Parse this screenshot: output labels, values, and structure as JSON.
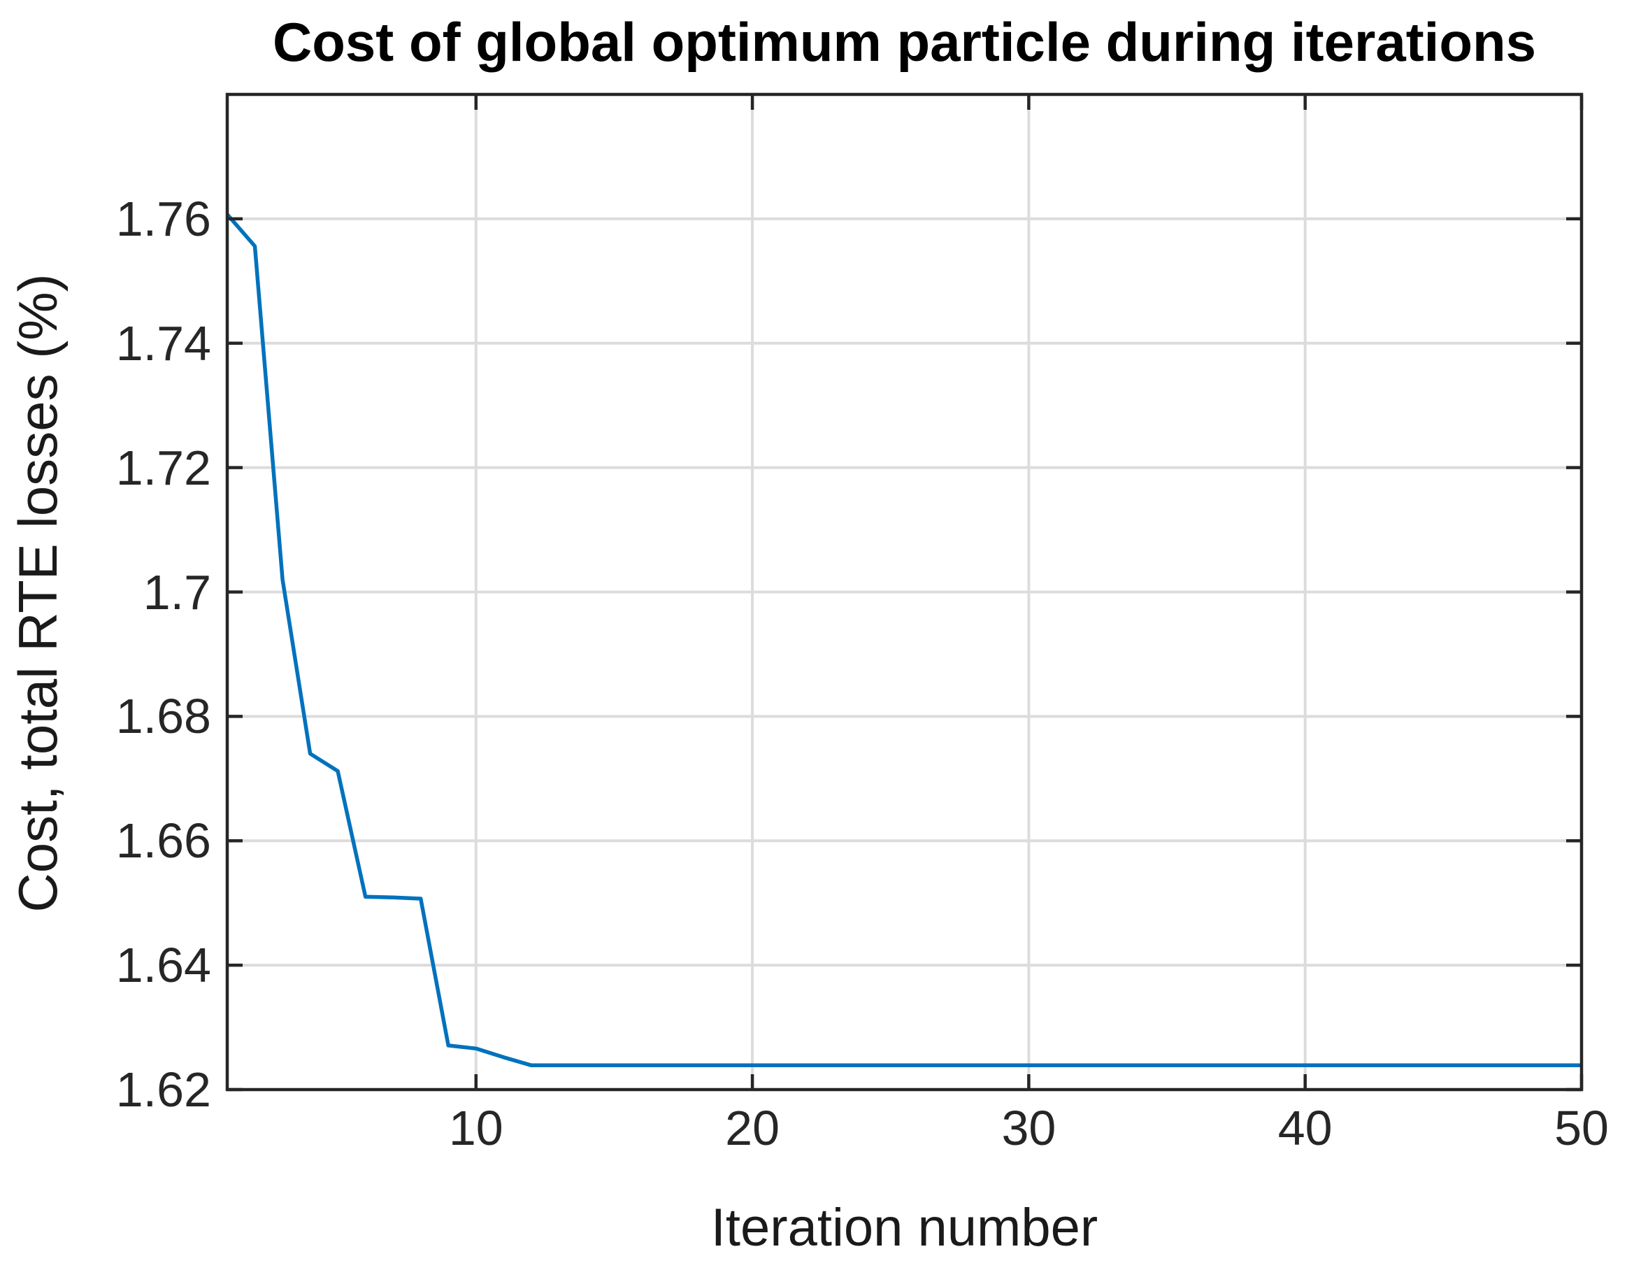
{
  "figure": {
    "background": "#ffffff"
  },
  "chart_data": {
    "type": "line",
    "title": "Cost of global optimum particle during iterations",
    "xlabel": "Iteration number",
    "ylabel": "Cost, total RTE losses (%)",
    "x": [
      1,
      2,
      3,
      4,
      5,
      6,
      7,
      8,
      9,
      10,
      11,
      12,
      13,
      14,
      15,
      16,
      17,
      18,
      19,
      20,
      21,
      22,
      23,
      24,
      25,
      26,
      27,
      28,
      29,
      30,
      31,
      32,
      33,
      34,
      35,
      36,
      37,
      38,
      39,
      40,
      41,
      42,
      43,
      44,
      45,
      46,
      47,
      48,
      49,
      50
    ],
    "y": [
      1.7607,
      1.7556,
      1.702,
      1.674,
      1.6712,
      1.651,
      1.6509,
      1.6507,
      1.6271,
      1.6266,
      1.6252,
      1.6239,
      1.6239,
      1.6239,
      1.6239,
      1.6239,
      1.6239,
      1.6239,
      1.6239,
      1.6239,
      1.6239,
      1.6239,
      1.6239,
      1.6239,
      1.6239,
      1.6239,
      1.6239,
      1.6239,
      1.6239,
      1.6239,
      1.6239,
      1.6239,
      1.6239,
      1.6239,
      1.6239,
      1.6239,
      1.6239,
      1.6239,
      1.6239,
      1.6239,
      1.6239,
      1.6239,
      1.6239,
      1.6239,
      1.6239,
      1.6239,
      1.6239,
      1.6239,
      1.6239,
      1.6239
    ],
    "xlim": [
      1,
      50
    ],
    "ylim": [
      1.62,
      1.78
    ],
    "xticks": {
      "values": [
        10,
        20,
        30,
        40,
        50
      ],
      "labels": [
        "10",
        "20",
        "30",
        "40",
        "50"
      ]
    },
    "yticks": {
      "values": [
        1.62,
        1.64,
        1.66,
        1.68,
        1.7,
        1.72,
        1.74,
        1.76
      ],
      "labels": [
        "1.62",
        "1.64",
        "1.66",
        "1.68",
        "1.7",
        "1.72",
        "1.74",
        "1.76"
      ]
    },
    "grid": true,
    "legend": "none",
    "colors": {
      "line": "#0072BD",
      "grid": "#dcdcdc",
      "axis": "#262626",
      "tick_text": "#262626",
      "label_text": "#1a1a1a",
      "title_text": "#000000"
    }
  }
}
